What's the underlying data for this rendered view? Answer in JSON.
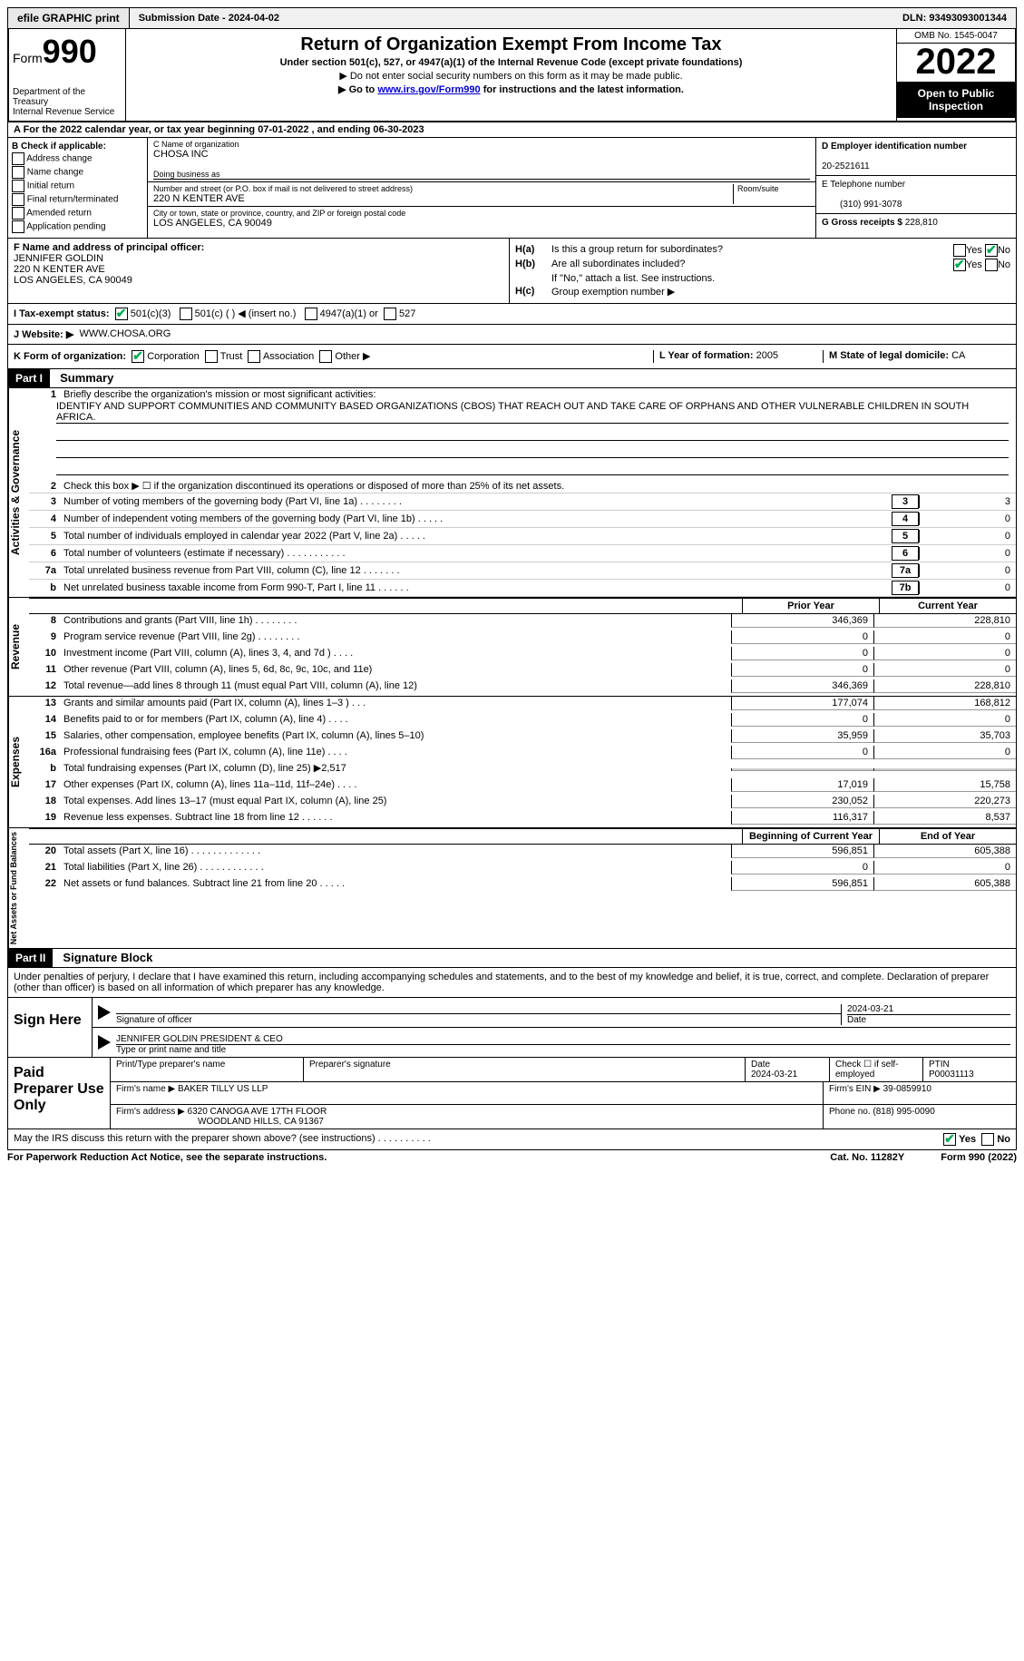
{
  "topbar": {
    "efile": "efile GRAPHIC print",
    "submission": "Submission Date - 2024-04-02",
    "dln": "DLN: 93493093001344"
  },
  "header": {
    "form_prefix": "Form",
    "form_number": "990",
    "dept": "Department of the Treasury",
    "irs": "Internal Revenue Service",
    "title": "Return of Organization Exempt From Income Tax",
    "subtitle": "Under section 501(c), 527, or 4947(a)(1) of the Internal Revenue Code (except private foundations)",
    "note1": "▶ Do not enter social security numbers on this form as it may be made public.",
    "note2_pre": "▶ Go to ",
    "note2_link": "www.irs.gov/Form990",
    "note2_post": " for instructions and the latest information.",
    "omb": "OMB No. 1545-0047",
    "year": "2022",
    "open": "Open to Public Inspection"
  },
  "rowA": "A For the 2022 calendar year, or tax year beginning 07-01-2022    , and ending 06-30-2023",
  "colB": {
    "title": "B Check if applicable:",
    "opts": [
      "Address change",
      "Name change",
      "Initial return",
      "Final return/terminated",
      "Amended return",
      "Application pending"
    ]
  },
  "colC": {
    "name_label": "C Name of organization",
    "name": "CHOSA INC",
    "dba_label": "Doing business as",
    "addr_label": "Number and street (or P.O. box if mail is not delivered to street address)",
    "room_label": "Room/suite",
    "addr": "220 N KENTER AVE",
    "city_label": "City or town, state or province, country, and ZIP or foreign postal code",
    "city": "LOS ANGELES, CA  90049"
  },
  "colDE": {
    "d_label": "D Employer identification number",
    "d_val": "20-2521611",
    "e_label": "E Telephone number",
    "e_val": "(310) 991-3078",
    "g_label": "G Gross receipts $",
    "g_val": "228,810"
  },
  "rowF": {
    "label": "F Name and address of principal officer:",
    "name": "JENNIFER GOLDIN",
    "addr1": "220 N KENTER AVE",
    "addr2": "LOS ANGELES, CA  90049"
  },
  "rowH": {
    "ha_label": "H(a)",
    "ha_text": "Is this a group return for subordinates?",
    "hb_label": "H(b)",
    "hb_text": "Are all subordinates included?",
    "hb_note": "If \"No,\" attach a list. See instructions.",
    "hc_label": "H(c)",
    "hc_text": "Group exemption number ▶",
    "yes": "Yes",
    "no": "No"
  },
  "rowI": {
    "label": "I   Tax-exempt status:",
    "opt1": "501(c)(3)",
    "opt2": "501(c) (  ) ◀ (insert no.)",
    "opt3": "4947(a)(1) or",
    "opt4": "527"
  },
  "rowJ": {
    "label": "J   Website: ▶",
    "val": "WWW.CHOSA.ORG"
  },
  "rowK": {
    "label": "K Form of organization:",
    "opts": [
      "Corporation",
      "Trust",
      "Association",
      "Other ▶"
    ],
    "l_label": "L Year of formation:",
    "l_val": "2005",
    "m_label": "M State of legal domicile:",
    "m_val": "CA"
  },
  "partI": {
    "header": "Part I",
    "title": "Summary"
  },
  "mission": {
    "num": "1",
    "label": "Briefly describe the organization's mission or most significant activities:",
    "text": "IDENTIFY AND SUPPORT COMMUNITIES AND COMMUNITY BASED ORGANIZATIONS (CBOS) THAT REACH OUT AND TAKE CARE OF ORPHANS AND OTHER VULNERABLE CHILDREN IN SOUTH AFRICA."
  },
  "lines_single": [
    {
      "num": "2",
      "desc": "Check this box ▶ ☐ if the organization discontinued its operations or disposed of more than 25% of its net assets.",
      "box": "",
      "val": ""
    },
    {
      "num": "3",
      "desc": "Number of voting members of the governing body (Part VI, line 1a)  .   .   .   .   .   .   .   .",
      "box": "3",
      "val": "3"
    },
    {
      "num": "4",
      "desc": "Number of independent voting members of the governing body (Part VI, line 1b)   .   .   .   .   .",
      "box": "4",
      "val": "0"
    },
    {
      "num": "5",
      "desc": "Total number of individuals employed in calendar year 2022 (Part V, line 2a)   .   .   .   .   .",
      "box": "5",
      "val": "0"
    },
    {
      "num": "6",
      "desc": "Total number of volunteers (estimate if necessary)   .   .   .   .   .   .   .   .   .   .   .",
      "box": "6",
      "val": "0"
    },
    {
      "num": "7a",
      "desc": "Total unrelated business revenue from Part VIII, column (C), line 12   .   .   .   .   .   .   .",
      "box": "7a",
      "val": "0"
    },
    {
      "num": "b",
      "desc": "Net unrelated business taxable income from Form 990-T, Part I, line 11   .   .   .   .   .   .",
      "box": "7b",
      "val": "0"
    }
  ],
  "col_headers": {
    "prior": "Prior Year",
    "current": "Current Year",
    "boy": "Beginning of Current Year",
    "eoy": "End of Year"
  },
  "revenue": [
    {
      "num": "8",
      "desc": "Contributions and grants (Part VIII, line 1h)   .   .   .   .   .   .   .   .",
      "c1": "346,369",
      "c2": "228,810"
    },
    {
      "num": "9",
      "desc": "Program service revenue (Part VIII, line 2g)   .   .   .   .   .   .   .   .",
      "c1": "0",
      "c2": "0"
    },
    {
      "num": "10",
      "desc": "Investment income (Part VIII, column (A), lines 3, 4, and 7d )   .   .   .   .",
      "c1": "0",
      "c2": "0"
    },
    {
      "num": "11",
      "desc": "Other revenue (Part VIII, column (A), lines 5, 6d, 8c, 9c, 10c, and 11e)",
      "c1": "0",
      "c2": "0"
    },
    {
      "num": "12",
      "desc": "Total revenue—add lines 8 through 11 (must equal Part VIII, column (A), line 12)",
      "c1": "346,369",
      "c2": "228,810"
    }
  ],
  "expenses": [
    {
      "num": "13",
      "desc": "Grants and similar amounts paid (Part IX, column (A), lines 1–3 )   .   .   .",
      "c1": "177,074",
      "c2": "168,812"
    },
    {
      "num": "14",
      "desc": "Benefits paid to or for members (Part IX, column (A), line 4)   .   .   .   .",
      "c1": "0",
      "c2": "0"
    },
    {
      "num": "15",
      "desc": "Salaries, other compensation, employee benefits (Part IX, column (A), lines 5–10)",
      "c1": "35,959",
      "c2": "35,703"
    },
    {
      "num": "16a",
      "desc": "Professional fundraising fees (Part IX, column (A), line 11e)   .   .   .   .",
      "c1": "0",
      "c2": "0"
    },
    {
      "num": "b",
      "desc": "Total fundraising expenses (Part IX, column (D), line 25) ▶2,517",
      "c1": "shade",
      "c2": "shade"
    },
    {
      "num": "17",
      "desc": "Other expenses (Part IX, column (A), lines 11a–11d, 11f–24e)   .   .   .   .",
      "c1": "17,019",
      "c2": "15,758"
    },
    {
      "num": "18",
      "desc": "Total expenses. Add lines 13–17 (must equal Part IX, column (A), line 25)",
      "c1": "230,052",
      "c2": "220,273"
    },
    {
      "num": "19",
      "desc": "Revenue less expenses. Subtract line 18 from line 12   .   .   .   .   .   .",
      "c1": "116,317",
      "c2": "8,537"
    }
  ],
  "netassets": [
    {
      "num": "20",
      "desc": "Total assets (Part X, line 16)  .   .   .   .   .   .   .   .   .   .   .   .   .",
      "c1": "596,851",
      "c2": "605,388"
    },
    {
      "num": "21",
      "desc": "Total liabilities (Part X, line 26)   .   .   .   .   .   .   .   .   .   .   .   .",
      "c1": "0",
      "c2": "0"
    },
    {
      "num": "22",
      "desc": "Net assets or fund balances. Subtract line 21 from line 20   .   .   .   .   .",
      "c1": "596,851",
      "c2": "605,388"
    }
  ],
  "side_labels": {
    "gov": "Activities & Governance",
    "rev": "Revenue",
    "exp": "Expenses",
    "net": "Net Assets or Fund Balances"
  },
  "partII": {
    "header": "Part II",
    "title": "Signature Block",
    "text": "Under penalties of perjury, I declare that I have examined this return, including accompanying schedules and statements, and to the best of my knowledge and belief, it is true, correct, and complete. Declaration of preparer (other than officer) is based on all information of which preparer has any knowledge."
  },
  "sign": {
    "here": "Sign Here",
    "sig_label": "Signature of officer",
    "date": "2024-03-21",
    "date_label": "Date",
    "name": "JENNIFER GOLDIN  PRESIDENT & CEO",
    "name_label": "Type or print name and title"
  },
  "prep": {
    "title": "Paid Preparer Use Only",
    "h1": "Print/Type preparer's name",
    "h2": "Preparer's signature",
    "h3_label": "Date",
    "h3": "2024-03-21",
    "h4_label": "Check ☐ if self-employed",
    "h5_label": "PTIN",
    "h5": "P00031113",
    "firm_label": "Firm's name    ▶",
    "firm": "BAKER TILLY US LLP",
    "ein_label": "Firm's EIN ▶",
    "ein": "39-0859910",
    "addr_label": "Firm's address ▶",
    "addr1": "6320 CANOGA AVE 17TH FLOOR",
    "addr2": "WOODLAND HILLS, CA  91367",
    "phone_label": "Phone no.",
    "phone": "(818) 995-0090"
  },
  "discuss": {
    "text": "May the IRS discuss this return with the preparer shown above? (see instructions)   .   .   .   .   .   .   .   .   .   .",
    "yes": "Yes",
    "no": "No"
  },
  "footer": {
    "left": "For Paperwork Reduction Act Notice, see the separate instructions.",
    "mid": "Cat. No. 11282Y",
    "right": "Form 990 (2022)"
  }
}
